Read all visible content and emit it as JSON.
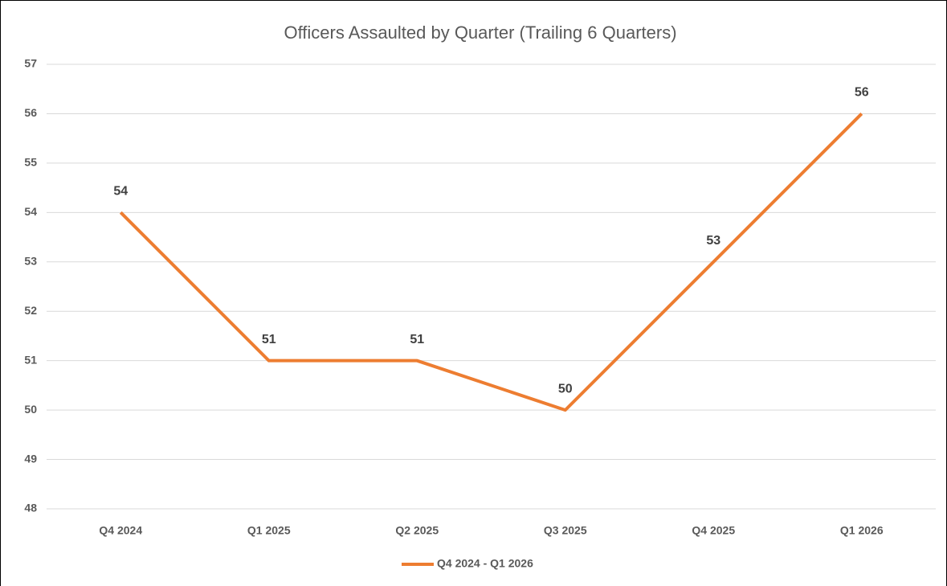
{
  "chart_data": {
    "type": "line",
    "title": "Officers Assaulted by Quarter (Trailing 6 Quarters)",
    "categories": [
      "Q4 2024",
      "Q1 2025",
      "Q2 2025",
      "Q3 2025",
      "Q4 2025",
      "Q1 2026"
    ],
    "series": [
      {
        "name": "Q4 2024 - Q1 2026",
        "color": "#ed7d31",
        "values": [
          54,
          51,
          51,
          50,
          53,
          56
        ]
      }
    ],
    "ylim": [
      48,
      57
    ],
    "yticks": [
      48,
      49,
      50,
      51,
      52,
      53,
      54,
      55,
      56,
      57
    ],
    "grid": true,
    "legend": "bottom"
  }
}
